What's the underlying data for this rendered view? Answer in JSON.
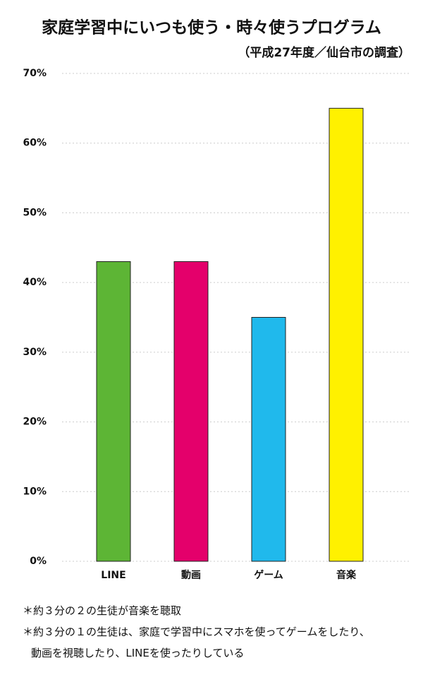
{
  "chart_data": {
    "type": "bar",
    "title": "家庭学習中にいつも使う・時々使うプログラム",
    "subtitle": "（平成27年度／仙台市の調査）",
    "categories": [
      "LINE",
      "動画",
      "ゲーム",
      "音楽"
    ],
    "values": [
      43,
      43,
      35,
      65
    ],
    "colors": [
      "#5db535",
      "#e4006b",
      "#20b9ec",
      "#fff100"
    ],
    "ylim": [
      0,
      70
    ],
    "yticks": [
      {
        "value": 0,
        "label": "0%"
      },
      {
        "value": 10,
        "label": "10%"
      },
      {
        "value": 20,
        "label": "20%"
      },
      {
        "value": 30,
        "label": "30%"
      },
      {
        "value": 40,
        "label": "40%"
      },
      {
        "value": 50,
        "label": "50%"
      },
      {
        "value": 60,
        "label": "60%"
      },
      {
        "value": 70,
        "label": "70%"
      }
    ],
    "grid": true,
    "notes": [
      "＊約３分の２の生徒が音楽を聴取",
      "＊約３分の１の生徒は、家庭で学習中にスマホを使ってゲームをしたり、動画を視聴したり、LINEを使ったりしている"
    ]
  }
}
